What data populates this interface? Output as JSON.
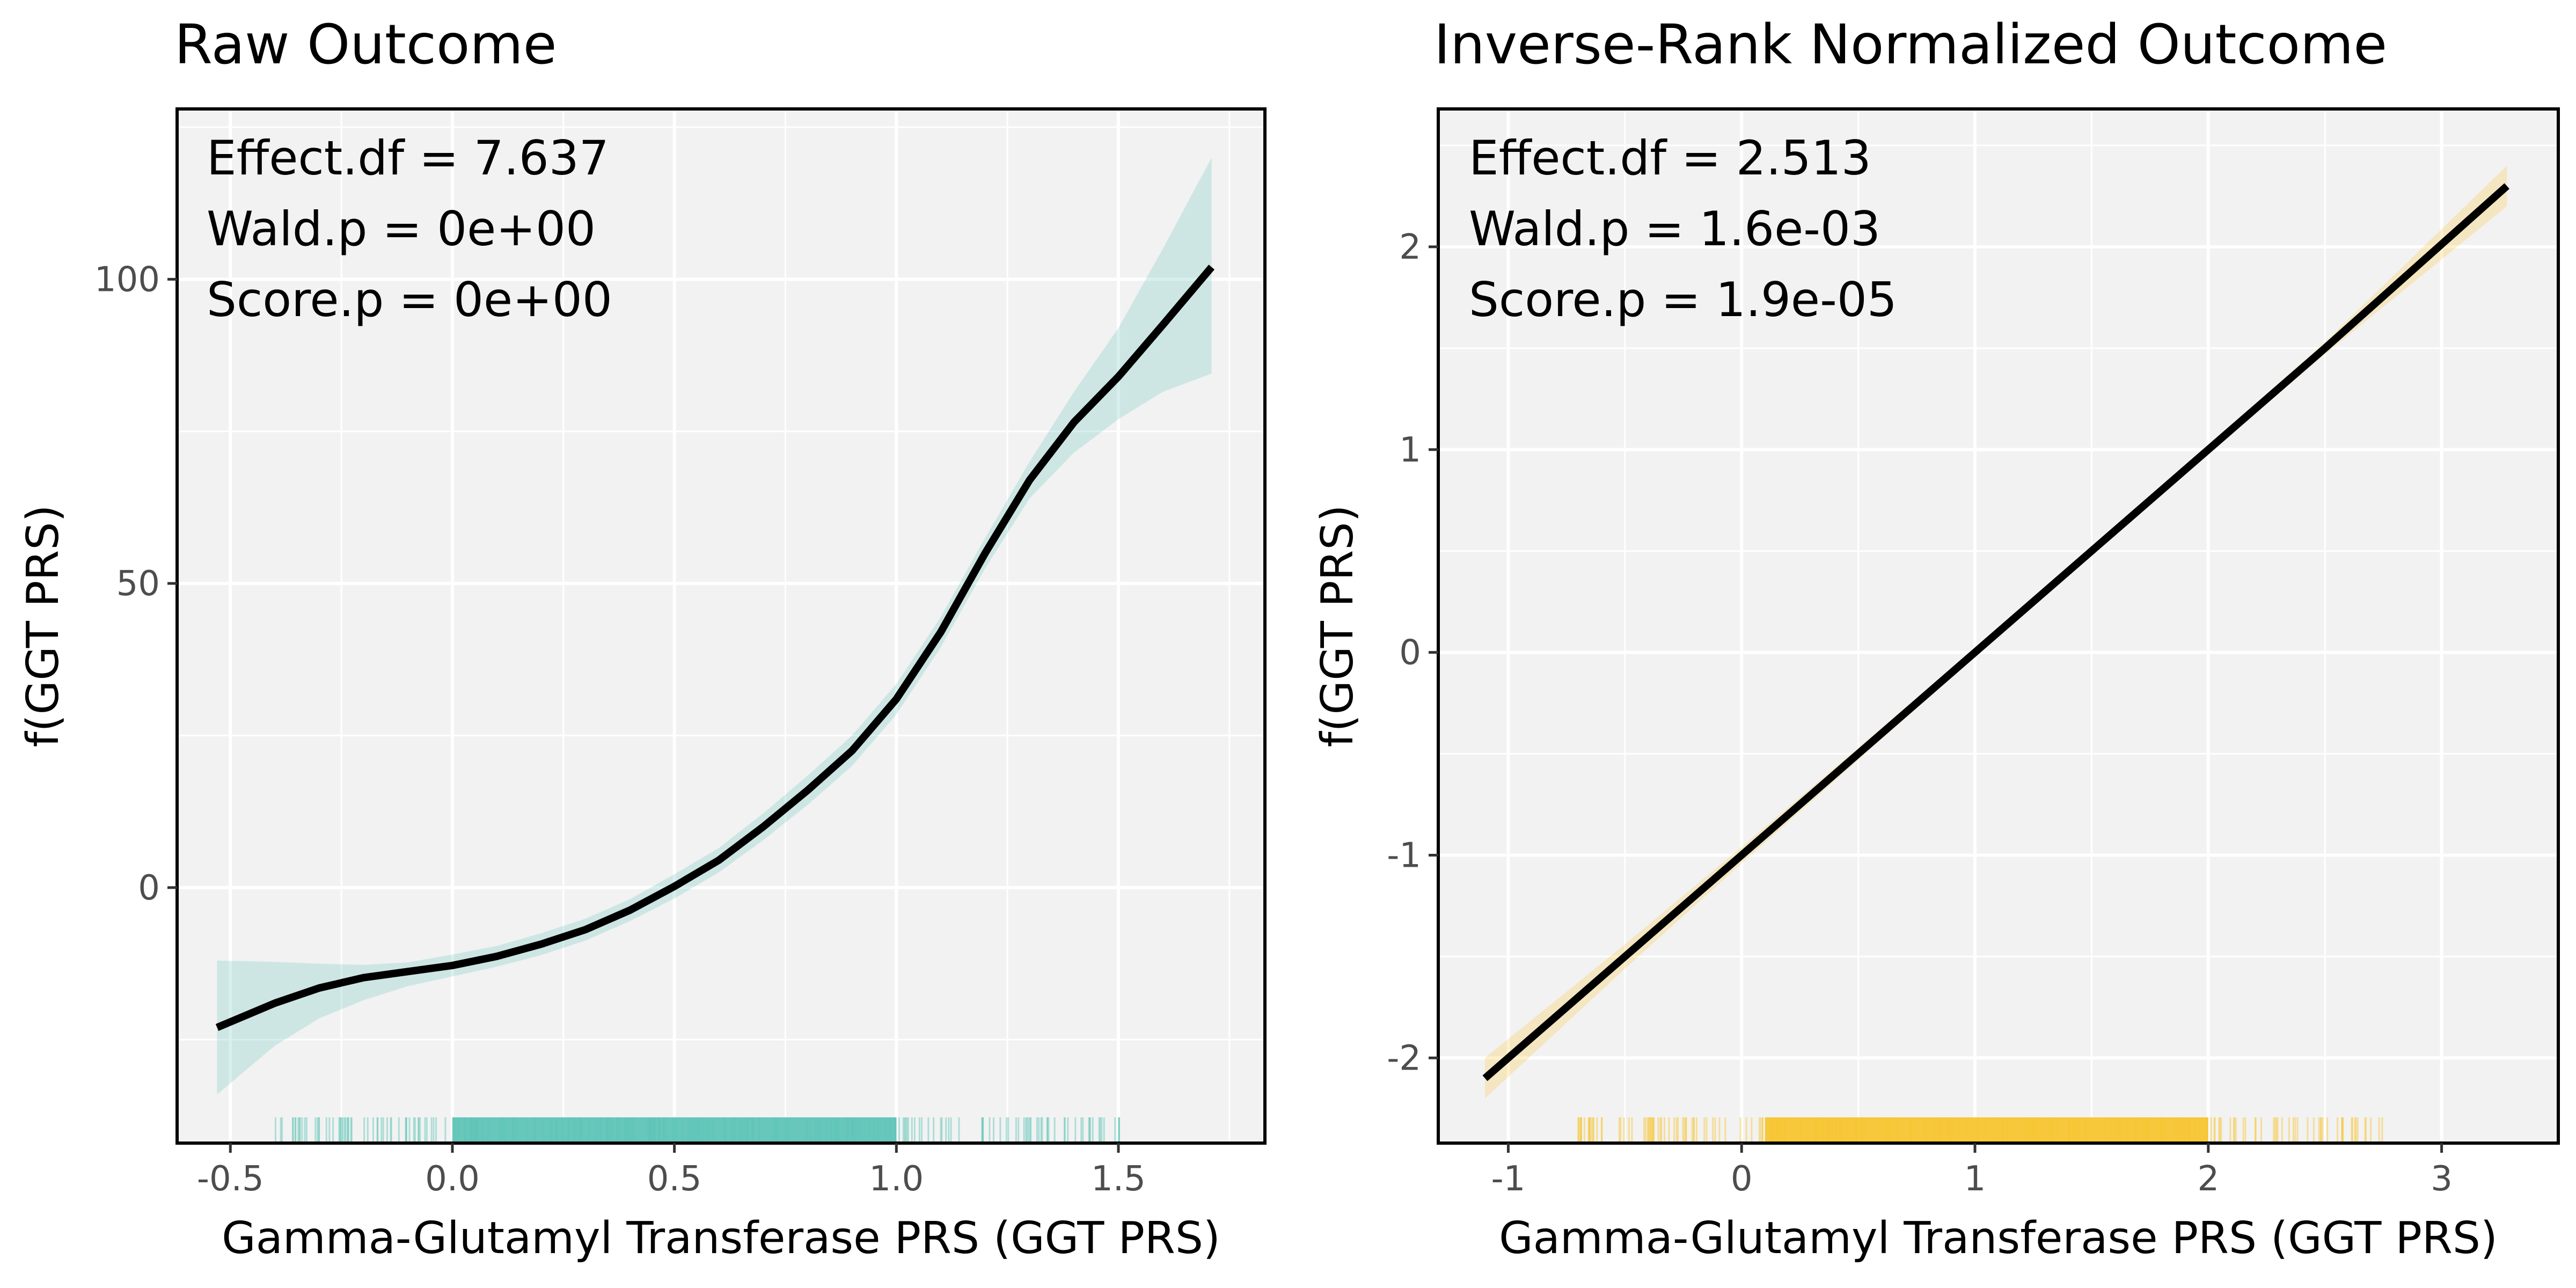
{
  "chart_data": [
    {
      "type": "line",
      "title": "Raw Outcome",
      "xlabel": "Gamma-Glutamyl Transferase PRS (GGT PRS)",
      "ylabel": "f(GGT PRS)",
      "xlim": [
        -0.62,
        1.83
      ],
      "ylim": [
        -42,
        128
      ],
      "x_ticks": [
        -0.5,
        0.0,
        0.5,
        1.0,
        1.5
      ],
      "x_tick_labels": [
        "-0.5",
        "0.0",
        "0.5",
        "1.0",
        "1.5"
      ],
      "y_ticks": [
        0,
        50,
        100
      ],
      "y_tick_labels": [
        "0",
        "50",
        "100"
      ],
      "annotations": [
        "Effect.df = 7.637",
        "Wald.p = 0e+00",
        "Score.p = 0e+00"
      ],
      "ribbon_color": "#5ec4b6",
      "line_color": "#000000",
      "panel_background": "#f2f2f2",
      "grid": true,
      "series": [
        {
          "x": [
            -0.53,
            -0.4,
            -0.3,
            -0.2,
            -0.1,
            0.0,
            0.1,
            0.2,
            0.3,
            0.4,
            0.5,
            0.6,
            0.7,
            0.8,
            0.9,
            1.0,
            1.1,
            1.2,
            1.3,
            1.4,
            1.5,
            1.6,
            1.71
          ],
          "y": [
            -23,
            -19,
            -16.5,
            -14.8,
            -13.8,
            -12.8,
            -11.3,
            -9.3,
            -6.9,
            -3.7,
            0.2,
            4.5,
            10.0,
            16.0,
            22.5,
            31.0,
            42.0,
            55.0,
            67.0,
            76.5,
            84.0,
            92.5,
            102.0
          ],
          "lower": [
            -34,
            -26,
            -21.5,
            -18.5,
            -16.2,
            -14.6,
            -13.0,
            -11.1,
            -8.7,
            -5.5,
            -1.8,
            2.5,
            7.8,
            13.6,
            20.0,
            28.5,
            39.5,
            52.5,
            64.0,
            71.5,
            77.0,
            81.5,
            84.5
          ],
          "upper": [
            -12,
            -12.2,
            -12.5,
            -12.7,
            -12.3,
            -11.0,
            -9.6,
            -7.5,
            -5.1,
            -1.9,
            2.2,
            6.5,
            12.2,
            18.4,
            25.0,
            33.5,
            44.5,
            57.5,
            70.0,
            81.5,
            92.0,
            105.0,
            120.0
          ]
        }
      ]
    },
    {
      "type": "line",
      "title": "Inverse-Rank Normalized Outcome",
      "xlabel": "Gamma-Glutamyl Transferase PRS (GGT PRS)",
      "ylabel": "f(GGT PRS)",
      "xlim": [
        -1.3,
        3.5
      ],
      "ylim": [
        -2.42,
        2.68
      ],
      "x_ticks": [
        -1,
        0,
        1,
        2,
        3
      ],
      "x_tick_labels": [
        "-1",
        "0",
        "1",
        "2",
        "3"
      ],
      "y_ticks": [
        -2,
        -1,
        0,
        1,
        2
      ],
      "y_tick_labels": [
        "-2",
        "-1",
        "0",
        "1",
        "2"
      ],
      "annotations": [
        "Effect.df = 2.513",
        "Wald.p = 1.6e-03",
        "Score.p = 1.9e-05"
      ],
      "ribbon_color": "#f7c531",
      "line_color": "#000000",
      "panel_background": "#f2f2f2",
      "grid": true,
      "series": [
        {
          "x": [
            -1.1,
            -0.5,
            0.0,
            0.5,
            1.0,
            1.5,
            2.0,
            2.5,
            3.28
          ],
          "y": [
            -2.1,
            -1.5,
            -1.0,
            -0.5,
            0.0,
            0.5,
            1.0,
            1.5,
            2.3
          ],
          "lower": [
            -2.2,
            -1.56,
            -1.04,
            -0.53,
            -0.02,
            0.48,
            0.98,
            1.47,
            2.2
          ],
          "upper": [
            -2.0,
            -1.44,
            -0.96,
            -0.47,
            0.02,
            0.52,
            1.02,
            1.53,
            2.4
          ]
        }
      ]
    }
  ]
}
